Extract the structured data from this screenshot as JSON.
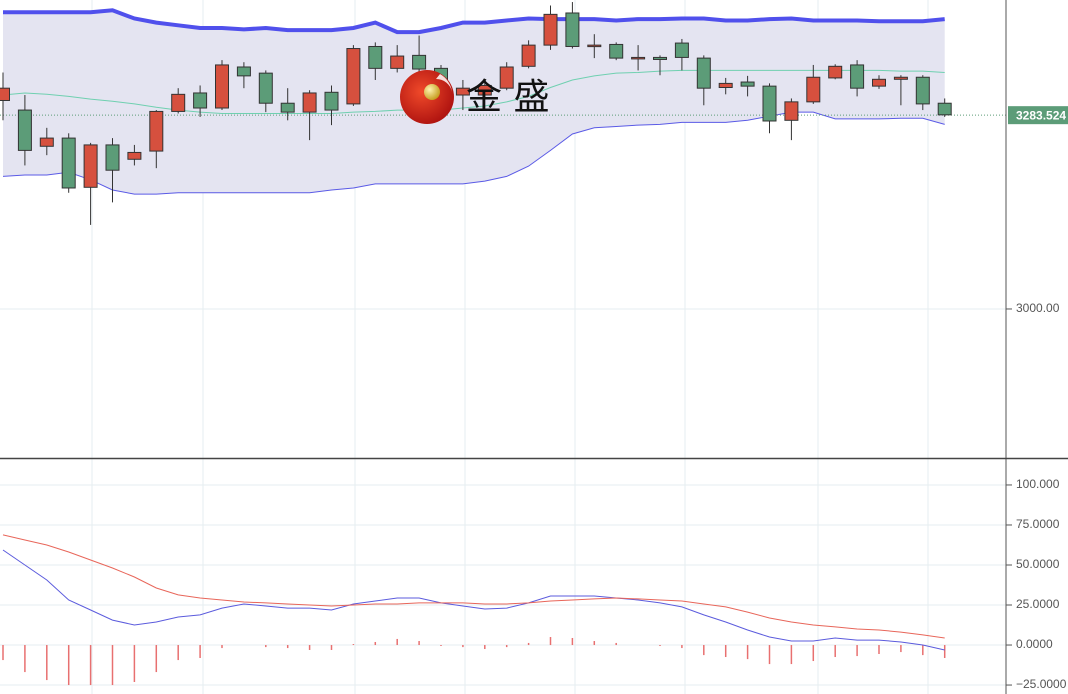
{
  "chart_data": [
    {
      "type": "candlestick",
      "watermark": "金 盛",
      "up_color": "#d6503e",
      "down_color": "#5c9c78",
      "open": [
        3305,
        3291,
        3238,
        3250,
        3178,
        3240,
        3219,
        3231,
        3289,
        3316,
        3294,
        3354,
        3345,
        3301,
        3288,
        3317,
        3300,
        3384,
        3352,
        3371,
        3352,
        3313,
        3313,
        3323,
        3355,
        3386,
        3433,
        3384,
        3387,
        3367,
        3368,
        3389,
        3367,
        3324,
        3332,
        3326,
        3276,
        3303,
        3338,
        3357,
        3326,
        3336,
        3339,
        3301
      ],
      "high": [
        3346,
        3313,
        3265,
        3257,
        3243,
        3250,
        3240,
        3291,
        3323,
        3327,
        3364,
        3361,
        3349,
        3323,
        3320,
        3327,
        3386,
        3390,
        3386,
        3400,
        3357,
        3335,
        3335,
        3361,
        3393,
        3444,
        3449,
        3402,
        3390,
        3386,
        3371,
        3395,
        3371,
        3338,
        3341,
        3330,
        3308,
        3357,
        3358,
        3364,
        3342,
        3342,
        3342,
        3308
      ],
      "low": [
        3276,
        3210,
        3225,
        3170,
        3123,
        3156,
        3210,
        3206,
        3286,
        3281,
        3291,
        3323,
        3288,
        3276,
        3247,
        3269,
        3297,
        3335,
        3346,
        3335,
        3305,
        3291,
        3310,
        3320,
        3352,
        3379,
        3381,
        3367,
        3364,
        3349,
        3342,
        3349,
        3298,
        3314,
        3311,
        3257,
        3247,
        3300,
        3336,
        3311,
        3322,
        3298,
        3291,
        3281
      ],
      "close": [
        3323,
        3232,
        3250,
        3177,
        3240,
        3203,
        3229,
        3289,
        3314,
        3294,
        3357,
        3341,
        3301,
        3288,
        3316,
        3291,
        3381,
        3352,
        3370,
        3351,
        3313,
        3323,
        3327,
        3354,
        3386,
        3431,
        3384,
        3386,
        3367,
        3368,
        3365,
        3368,
        3323,
        3330,
        3326,
        3275,
        3303,
        3339,
        3355,
        3323,
        3336,
        3339,
        3300,
        3284
      ],
      "band_fill": "#e4e4f1",
      "series": [
        {
          "color": "#5050ec",
          "values": [
            3434,
            3434,
            3434,
            3434,
            3434,
            3437,
            3425,
            3419,
            3415,
            3411,
            3411,
            3409,
            3411,
            3408,
            3408,
            3408,
            3411,
            3419,
            3405,
            3405,
            3411,
            3419,
            3419,
            3422,
            3425,
            3424,
            3424,
            3424,
            3422,
            3424,
            3424,
            3425,
            3425,
            3422,
            3422,
            3424,
            3425,
            3422,
            3422,
            3422,
            3421,
            3421,
            3421,
            3424
          ]
        },
        {
          "color": "#6fd0b0",
          "values": [
            3313,
            3316,
            3314,
            3311,
            3307,
            3304,
            3300,
            3295,
            3291,
            3288,
            3286,
            3286,
            3286,
            3286,
            3286,
            3286,
            3288,
            3289,
            3291,
            3291,
            3291,
            3294,
            3297,
            3303,
            3311,
            3324,
            3335,
            3341,
            3345,
            3346,
            3348,
            3349,
            3349,
            3349,
            3349,
            3349,
            3349,
            3349,
            3349,
            3349,
            3349,
            3348,
            3348,
            3346
          ]
        },
        {
          "color": "#5a5ae6",
          "values": [
            3194,
            3196,
            3196,
            3200,
            3189,
            3174,
            3168,
            3168,
            3170,
            3170,
            3170,
            3170,
            3170,
            3170,
            3170,
            3174,
            3177,
            3183,
            3183,
            3183,
            3183,
            3183,
            3187,
            3194,
            3209,
            3232,
            3256,
            3265,
            3267,
            3269,
            3270,
            3273,
            3273,
            3273,
            3276,
            3282,
            3288,
            3288,
            3278,
            3278,
            3278,
            3279,
            3279,
            3270
          ]
        }
      ],
      "ylim": [
        2782,
        3452
      ],
      "yticks": [
        {
          "value": 3000,
          "label": "3000.00"
        }
      ],
      "last_price": {
        "value": 3283.524,
        "label": "3283.524",
        "color": "#5c9c78"
      }
    },
    {
      "type": "line",
      "series": [
        {
          "color": "#5b5bdd",
          "values": [
            59.4,
            50,
            40.6,
            28.1,
            21.9,
            15.6,
            12.5,
            14.4,
            17.5,
            18.8,
            23.1,
            25.6,
            24.4,
            23.1,
            23.1,
            21.9,
            25.6,
            27.5,
            29.4,
            29.4,
            26.3,
            24.4,
            22.5,
            23.1,
            26.3,
            30.6,
            30.6,
            30.6,
            29.4,
            28.1,
            26.3,
            23.8,
            18.8,
            14.4,
            9.4,
            5,
            2.5,
            2.5,
            4.4,
            3.1,
            3.1,
            1.9,
            0,
            -3.1
          ]
        },
        {
          "color": "#e8665a",
          "values": [
            68.8,
            65.6,
            62.5,
            58.1,
            53.1,
            48.1,
            42.5,
            35.6,
            31.3,
            29.4,
            28.1,
            26.9,
            26.3,
            25.6,
            25,
            24.4,
            25,
            25.6,
            25.6,
            26.3,
            26.3,
            26.3,
            25.6,
            25.6,
            26.3,
            27.5,
            28.1,
            28.8,
            29.4,
            28.8,
            28.1,
            27.5,
            25.6,
            23.8,
            20.6,
            16.9,
            14.4,
            12.5,
            11.3,
            10,
            9.4,
            8.1,
            6.3,
            4.4
          ]
        }
      ],
      "histogram": {
        "color": "#e87070",
        "values": [
          -9.4,
          -16.9,
          -21.9,
          -25,
          -25,
          -25,
          -23.1,
          -16.9,
          -9.4,
          -8.1,
          -1.9,
          0,
          -1.3,
          -1.9,
          -3.1,
          -3.1,
          0.6,
          1.9,
          3.8,
          2.5,
          -0.6,
          -1.3,
          -2.5,
          -1.3,
          1.3,
          5,
          4.4,
          2.5,
          1.3,
          0,
          -0.6,
          -1.9,
          -6.3,
          -7.5,
          -8.8,
          -11.9,
          -11.9,
          -10,
          -7.5,
          -6.9,
          -5.6,
          -4.4,
          -6.3,
          -8.1
        ]
      },
      "ylim": [
        -30.6,
        115.6
      ],
      "yticks": [
        {
          "value": 100,
          "label": "100.000"
        },
        {
          "value": 75,
          "label": "75.0000"
        },
        {
          "value": 50,
          "label": "50.0000"
        },
        {
          "value": 25,
          "label": "25.0000"
        },
        {
          "value": 0,
          "label": "0.0000"
        },
        {
          "value": -25,
          "label": "−25.0000"
        }
      ]
    }
  ]
}
